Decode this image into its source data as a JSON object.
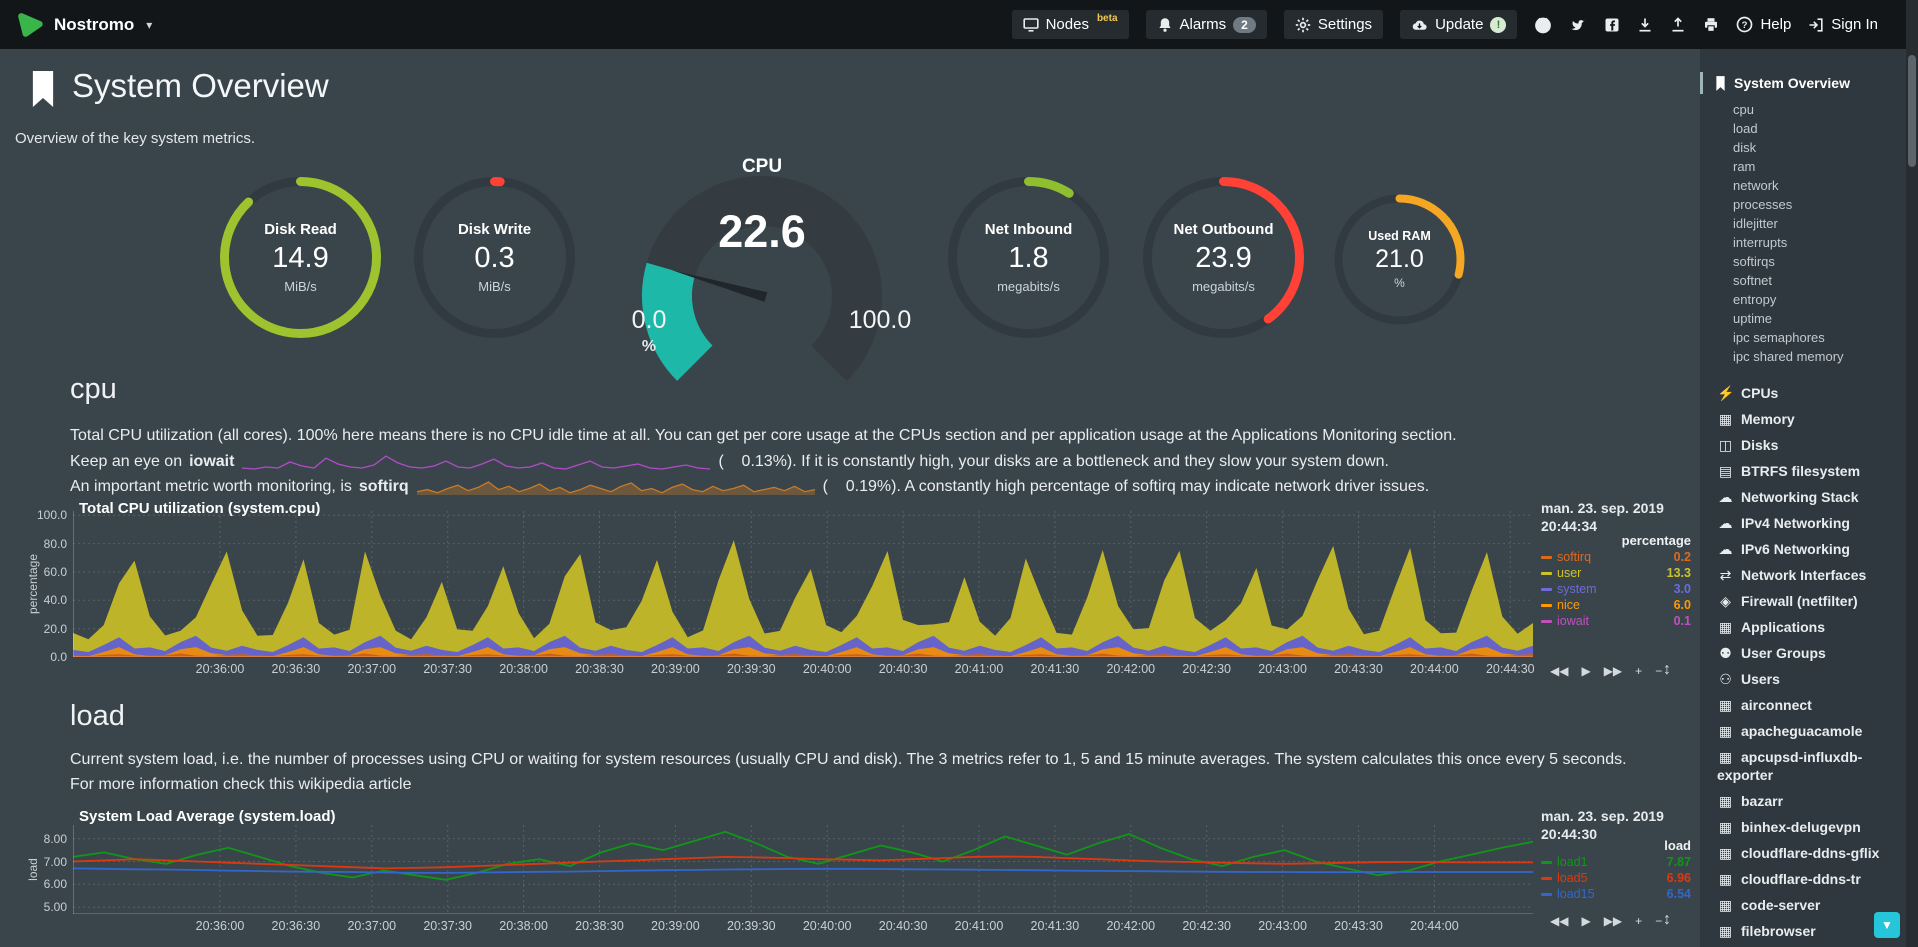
{
  "topbar": {
    "brand": "Nostromo",
    "nodes_label": "Nodes",
    "nodes_badge": "beta",
    "alarms_label": "Alarms",
    "alarms_count": "2",
    "settings_label": "Settings",
    "update_label": "Update",
    "update_badge": "!",
    "help_label": "Help",
    "signin_label": "Sign In"
  },
  "header": {
    "title": "System Overview",
    "subtitle": "Overview of the key system metrics."
  },
  "gauges": {
    "disk_read": {
      "label": "Disk Read",
      "value": "14.9",
      "unit": "MiB/s",
      "percent": 88,
      "color": "#9DC32E"
    },
    "disk_write": {
      "label": "Disk Write",
      "value": "0.3",
      "unit": "MiB/s",
      "percent": 1.2,
      "color": "#FF4136"
    },
    "cpu": {
      "title": "CPU",
      "value": "22.6",
      "min": "0.0",
      "max": "100.0",
      "unit": "%",
      "percent": 22.6,
      "color": "#1EB8A8"
    },
    "net_inbound": {
      "label": "Net Inbound",
      "value": "1.8",
      "unit": "megabits/s",
      "percent": 9,
      "color": "#8FBE2E"
    },
    "net_outbound": {
      "label": "Net Outbound",
      "value": "23.9",
      "unit": "megabits/s",
      "percent": 40,
      "color": "#FF4136"
    },
    "used_ram": {
      "label": "Used RAM",
      "value": "21.0",
      "unit": "%",
      "percent": 29,
      "color": "#F5A623"
    }
  },
  "cpu_section": {
    "heading": "cpu",
    "line1": "Total CPU utilization (all cores). 100% here means there is no CPU idle time at all. You can get per core usage at the CPUs section and per application usage at the Applications Monitoring section.",
    "line2_pre": "Keep an eye on",
    "line2_metric": "iowait",
    "line2_post": "(    0.13%). If it is constantly high, your disks are a bottleneck and they slow your system down.",
    "line3_pre": "An important metric worth monitoring, is",
    "line3_metric": "softirq",
    "line3_post": "(    0.19%). A constantly high percentage of softirq may indicate network driver issues.",
    "iowait_spark": {
      "color": "#B24BC8",
      "points": [
        2,
        1,
        3,
        2,
        8,
        4,
        2,
        12,
        6,
        3,
        2,
        5,
        14,
        7,
        3,
        2,
        4,
        9,
        3,
        2,
        6,
        11,
        4,
        2,
        3,
        7,
        2,
        1,
        5,
        9,
        3,
        2,
        4,
        6,
        2,
        1,
        3,
        5,
        2,
        1
      ]
    },
    "softirq_spark": {
      "color": "#C97A28",
      "points": [
        3,
        5,
        2,
        6,
        9,
        4,
        7,
        12,
        5,
        8,
        3,
        6,
        10,
        4,
        7,
        2,
        5,
        9,
        6,
        3,
        8,
        11,
        4,
        6,
        2,
        7,
        10,
        5,
        3,
        8,
        4,
        6,
        9,
        3,
        5,
        7,
        4,
        8,
        3,
        5
      ]
    }
  },
  "load_section": {
    "heading": "load",
    "desc": "Current system load, i.e. the number of processes using CPU or waiting for system resources (usually CPU and disk). The 3 metrics refer to 1, 5 and 15 minute averages. The system calculates this once every 5 seconds. For more information check this ",
    "desc_link": "wikipedia article"
  },
  "toolbar": {
    "pan_backward": "◀◀",
    "play": "▶",
    "pan_forward": "▶▶",
    "zoom_in": "+",
    "zoom_out": "−",
    "resize": "↕"
  },
  "chart_data": [
    {
      "type": "area-stacked",
      "title": "Total CPU utilization (system.cpu)",
      "context_date": "man. 23. sep. 2019",
      "context_time": "20:44:34",
      "units": "percentage",
      "ylabel": "percentage",
      "ylim": [
        0,
        100
      ],
      "y_ticks": [
        {
          "v": 100,
          "label": "100.0"
        },
        {
          "v": 80,
          "label": "80.0"
        },
        {
          "v": 60,
          "label": "60.0"
        },
        {
          "v": 40,
          "label": "40.0"
        },
        {
          "v": 20,
          "label": "20.0"
        },
        {
          "v": 0,
          "label": "0.0"
        }
      ],
      "x_ticks": [
        "20:36:00",
        "20:36:30",
        "20:37:00",
        "20:37:30",
        "20:38:00",
        "20:38:30",
        "20:39:00",
        "20:39:30",
        "20:40:00",
        "20:40:30",
        "20:41:00",
        "20:41:30",
        "20:42:00",
        "20:42:30",
        "20:43:00",
        "20:43:30",
        "20:44:00",
        "20:44:30"
      ],
      "legend": [
        {
          "name": "softirq",
          "value": "0.2",
          "color": "#DD6A1C"
        },
        {
          "name": "user",
          "value": "13.3",
          "color": "#CDC32B"
        },
        {
          "name": "system",
          "value": "3.0",
          "color": "#6E6AD8"
        },
        {
          "name": "nice",
          "value": "6.0",
          "color": "#FF9900"
        },
        {
          "name": "iowait",
          "value": "0.1",
          "color": "#C04FC0"
        }
      ],
      "series": [
        {
          "name": "softirq",
          "color": "#CE5F17",
          "values": [
            1,
            0.5,
            1.5,
            2,
            1,
            0.8,
            1.2,
            2.5,
            1,
            0.6,
            1.4,
            2,
            1,
            0.5,
            1.5,
            2,
            1,
            0.8,
            1.2,
            2.5,
            1,
            0.6,
            1.4,
            2,
            1,
            0.5,
            1.5,
            2,
            1,
            0.8,
            1.2,
            2.5,
            1,
            0.6,
            1.4,
            2,
            1,
            0.5,
            1.5,
            2,
            1,
            0.8,
            1.2,
            2.5,
            1,
            0.6,
            1.4,
            2,
            1,
            0.5,
            1.5,
            2,
            1,
            0.8,
            1.2,
            2.5,
            1,
            0.6,
            1.4,
            2,
            1,
            0.5,
            1.5,
            2,
            1,
            0.8,
            1.2,
            2.5,
            1,
            0.6,
            1.4,
            2,
            1,
            0.5,
            1.5,
            2,
            1,
            0.8,
            1.2,
            2.5,
            1,
            0.6,
            1.4,
            2,
            1,
            0.5,
            1.5,
            2,
            1,
            0.8,
            1.2,
            2.5,
            1,
            0.6,
            1.4,
            2
          ]
        },
        {
          "name": "nice",
          "color": "#E88B13",
          "values": [
            0,
            0,
            2,
            5,
            1,
            0,
            0,
            3,
            6,
            2,
            0,
            0,
            0,
            0,
            2,
            5,
            1,
            0,
            0,
            3,
            6,
            2,
            0,
            0,
            0,
            0,
            2,
            5,
            1,
            0,
            0,
            3,
            6,
            2,
            0,
            0,
            0,
            0,
            2,
            5,
            1,
            0,
            0,
            3,
            6,
            2,
            0,
            0,
            0,
            0,
            2,
            5,
            1,
            0,
            0,
            3,
            6,
            2,
            0,
            0,
            0,
            0,
            2,
            5,
            1,
            0,
            0,
            3,
            6,
            2,
            0,
            0,
            0,
            0,
            2,
            5,
            1,
            0,
            0,
            3,
            6,
            2,
            0,
            0,
            0,
            0,
            2,
            5,
            1,
            0,
            0,
            3,
            6,
            2,
            0,
            0
          ]
        },
        {
          "name": "system",
          "color": "#6663C9",
          "values": [
            4,
            3,
            5,
            7,
            4,
            6,
            3,
            5,
            8,
            4,
            3,
            6,
            4,
            3,
            5,
            7,
            4,
            6,
            3,
            5,
            8,
            4,
            3,
            6,
            4,
            3,
            5,
            7,
            4,
            6,
            3,
            5,
            8,
            4,
            3,
            6,
            4,
            3,
            5,
            7,
            4,
            6,
            3,
            5,
            8,
            4,
            3,
            6,
            4,
            3,
            5,
            7,
            4,
            6,
            3,
            5,
            8,
            4,
            3,
            6,
            4,
            3,
            5,
            7,
            4,
            6,
            3,
            5,
            8,
            4,
            3,
            6,
            4,
            3,
            5,
            7,
            4,
            6,
            3,
            5,
            8,
            4,
            3,
            6,
            4,
            3,
            5,
            7,
            4,
            6,
            3,
            5,
            8,
            4,
            3,
            6
          ]
        },
        {
          "name": "user",
          "color": "#BEB42A",
          "values": [
            12,
            9,
            14,
            38,
            62,
            22,
            11,
            8,
            13,
            45,
            70,
            25,
            10,
            12,
            30,
            55,
            18,
            9,
            15,
            64,
            28,
            12,
            8,
            20,
            48,
            16,
            10,
            22,
            58,
            24,
            9,
            13,
            42,
            66,
            20,
            11,
            16,
            36,
            60,
            18,
            8,
            12,
            50,
            72,
            26,
            10,
            14,
            34,
            57,
            19,
            9,
            15,
            44,
            68,
            22,
            12,
            8,
            18,
            52,
            17,
            10,
            24,
            61,
            28,
            11,
            9,
            38,
            65,
            21,
            13,
            16,
            46,
            70,
            24,
            10,
            12,
            32,
            56,
            18,
            9,
            14,
            48,
            74,
            26,
            11,
            15,
            40,
            63,
            20,
            10,
            13,
            36,
            59,
            22,
            12,
            16
          ]
        }
      ]
    },
    {
      "type": "line",
      "title": "System Load Average (system.load)",
      "context_date": "man. 23. sep. 2019",
      "context_time": "20:44:30",
      "units": "load",
      "ylabel": "load",
      "ylim": [
        4.7,
        8.6
      ],
      "y_ticks": [
        {
          "v": 8,
          "label": "8.00"
        },
        {
          "v": 7,
          "label": "7.00"
        },
        {
          "v": 6,
          "label": "6.00"
        },
        {
          "v": 5,
          "label": "5.00"
        }
      ],
      "x_ticks": [
        "20:36:00",
        "20:36:30",
        "20:37:00",
        "20:37:30",
        "20:38:00",
        "20:38:30",
        "20:39:00",
        "20:39:30",
        "20:40:00",
        "20:40:30",
        "20:41:00",
        "20:41:30",
        "20:42:00",
        "20:42:30",
        "20:43:00",
        "20:43:30",
        "20:44:00"
      ],
      "legend": [
        {
          "name": "load1",
          "value": "7.87",
          "color": "#109618"
        },
        {
          "name": "load5",
          "value": "6.96",
          "color": "#DC3912"
        },
        {
          "name": "load15",
          "value": "6.54",
          "color": "#3366CC"
        }
      ],
      "series": [
        {
          "name": "load1",
          "color": "#109618",
          "values": [
            7.2,
            7.4,
            7.1,
            6.9,
            7.3,
            7.6,
            7.2,
            6.8,
            6.5,
            6.3,
            6.6,
            6.4,
            6.2,
            6.5,
            6.9,
            7.1,
            6.8,
            7.4,
            7.8,
            7.5,
            7.9,
            8.3,
            7.8,
            7.2,
            6.9,
            7.3,
            7.7,
            7.4,
            7.0,
            7.5,
            8.1,
            7.7,
            7.3,
            7.8,
            8.2,
            7.6,
            7.1,
            6.8,
            7.2,
            7.5,
            7.0,
            6.7,
            6.4,
            6.6,
            7.0,
            7.3,
            7.6,
            7.87
          ]
        },
        {
          "name": "load5",
          "color": "#DC3912",
          "values": [
            7.0,
            7.05,
            7.1,
            7.05,
            7.0,
            6.95,
            6.9,
            6.85,
            6.8,
            6.75,
            6.7,
            6.72,
            6.75,
            6.8,
            6.85,
            6.9,
            6.95,
            7.0,
            7.05,
            7.1,
            7.15,
            7.2,
            7.18,
            7.15,
            7.1,
            7.08,
            7.05,
            7.1,
            7.15,
            7.2,
            7.22,
            7.2,
            7.15,
            7.1,
            7.05,
            7.0,
            6.98,
            6.95,
            6.92,
            6.9,
            6.92,
            6.95,
            6.97,
            6.98,
            6.97,
            6.96,
            6.96,
            6.96
          ]
        },
        {
          "name": "load15",
          "color": "#3366CC",
          "values": [
            6.7,
            6.68,
            6.66,
            6.65,
            6.63,
            6.6,
            6.58,
            6.56,
            6.55,
            6.54,
            6.52,
            6.5,
            6.5,
            6.52,
            6.53,
            6.55,
            6.56,
            6.58,
            6.6,
            6.62,
            6.63,
            6.65,
            6.66,
            6.67,
            6.68,
            6.68,
            6.67,
            6.66,
            6.65,
            6.64,
            6.63,
            6.62,
            6.6,
            6.59,
            6.58,
            6.57,
            6.56,
            6.55,
            6.54,
            6.54,
            6.53,
            6.53,
            6.54,
            6.54,
            6.54,
            6.54,
            6.54,
            6.54
          ]
        }
      ]
    }
  ],
  "sidebar": {
    "active_label": "System Overview",
    "subitems": [
      "cpu",
      "load",
      "disk",
      "ram",
      "network",
      "processes",
      "idlejitter",
      "interrupts",
      "softirqs",
      "softnet",
      "entropy",
      "uptime",
      "ipc semaphores",
      "ipc shared memory"
    ],
    "sections": [
      {
        "icon": "bolt",
        "label": "CPUs"
      },
      {
        "icon": "memory",
        "label": "Memory"
      },
      {
        "icon": "hdd",
        "label": "Disks"
      },
      {
        "icon": "folder",
        "label": "BTRFS filesystem"
      },
      {
        "icon": "cloud",
        "label": "Networking Stack"
      },
      {
        "icon": "cloud",
        "label": "IPv4 Networking"
      },
      {
        "icon": "cloud",
        "label": "IPv6 Networking"
      },
      {
        "icon": "interfaces",
        "label": "Network Interfaces"
      },
      {
        "icon": "shield",
        "label": "Firewall (netfilter)"
      },
      {
        "icon": "apps",
        "label": "Applications"
      },
      {
        "icon": "users",
        "label": "User Groups"
      },
      {
        "icon": "user",
        "label": "Users"
      },
      {
        "icon": "app",
        "label": "airconnect"
      },
      {
        "icon": "app",
        "label": "apacheguacamole"
      },
      {
        "icon": "app",
        "label": "apcupsd-influxdb-exporter"
      },
      {
        "icon": "app",
        "label": "bazarr"
      },
      {
        "icon": "app",
        "label": "binhex-delugevpn"
      },
      {
        "icon": "app",
        "label": "cloudflare-ddns-gflix"
      },
      {
        "icon": "app",
        "label": "cloudflare-ddns-tr"
      },
      {
        "icon": "app",
        "label": "code-server"
      },
      {
        "icon": "app",
        "label": "filebrowser"
      }
    ]
  },
  "misc": {
    "scroll_down": "▼"
  }
}
